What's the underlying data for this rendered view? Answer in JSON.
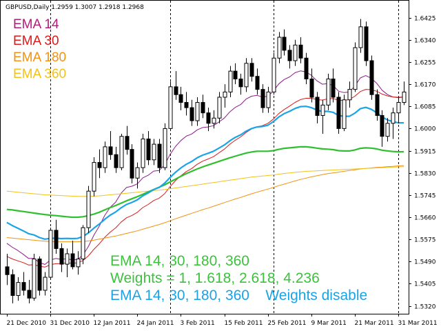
{
  "chart_data": {
    "type": "candlestick",
    "symbol_line": "GBPUSD,Daily 1.2959 1.3007 1.2918 1.2968",
    "ylim": [
      1.529,
      1.649
    ],
    "y_ticks": [
      "1.6425",
      "1.6340",
      "1.6255",
      "1.6170",
      "1.6085",
      "1.6000",
      "1.5915",
      "1.5830",
      "1.5745",
      "1.5660",
      "1.5575",
      "1.5490",
      "1.5405",
      "1.5320"
    ],
    "x_ticks": [
      {
        "label": "21 Dec 2010",
        "bar": 0
      },
      {
        "label": "31 Dec 2010",
        "bar": 8
      },
      {
        "label": "12 Jan 2011",
        "bar": 16
      },
      {
        "label": "24 Jan 2011",
        "bar": 24
      },
      {
        "label": "3 Feb 2011",
        "bar": 32
      },
      {
        "label": "15 Feb 2011",
        "bar": 40
      },
      {
        "label": "25 Feb 2011",
        "bar": 48
      },
      {
        "label": "9 Mar 2011",
        "bar": 56
      },
      {
        "label": "21 Mar 2011",
        "bar": 64
      },
      {
        "label": "31 Mar 2011",
        "bar": 72
      }
    ],
    "period_separators_at_bars": [
      8,
      30,
      49,
      72
    ],
    "candles": [
      [
        1.547,
        1.552,
        1.54,
        1.544
      ],
      [
        1.544,
        1.546,
        1.533,
        1.536
      ],
      [
        1.536,
        1.543,
        1.534,
        1.541
      ],
      [
        1.541,
        1.545,
        1.536,
        1.538
      ],
      [
        1.538,
        1.542,
        1.533,
        1.535
      ],
      [
        1.535,
        1.552,
        1.534,
        1.55
      ],
      [
        1.55,
        1.551,
        1.536,
        1.538
      ],
      [
        1.538,
        1.545,
        1.536,
        1.543
      ],
      [
        1.543,
        1.562,
        1.542,
        1.561
      ],
      [
        1.561,
        1.565,
        1.552,
        1.554
      ],
      [
        1.554,
        1.556,
        1.545,
        1.548
      ],
      [
        1.548,
        1.554,
        1.543,
        1.552
      ],
      [
        1.552,
        1.557,
        1.546,
        1.547
      ],
      [
        1.547,
        1.553,
        1.544,
        1.55
      ],
      [
        1.55,
        1.563,
        1.548,
        1.562
      ],
      [
        1.562,
        1.578,
        1.56,
        1.576
      ],
      [
        1.576,
        1.589,
        1.574,
        1.587
      ],
      [
        1.587,
        1.592,
        1.581,
        1.585
      ],
      [
        1.585,
        1.595,
        1.583,
        1.593
      ],
      [
        1.593,
        1.599,
        1.588,
        1.59
      ],
      [
        1.59,
        1.593,
        1.583,
        1.585
      ],
      [
        1.585,
        1.598,
        1.584,
        1.597
      ],
      [
        1.597,
        1.601,
        1.59,
        1.592
      ],
      [
        1.592,
        1.594,
        1.579,
        1.581
      ],
      [
        1.581,
        1.587,
        1.577,
        1.585
      ],
      [
        1.585,
        1.598,
        1.583,
        1.596
      ],
      [
        1.596,
        1.599,
        1.586,
        1.588
      ],
      [
        1.588,
        1.596,
        1.586,
        1.594
      ],
      [
        1.594,
        1.596,
        1.583,
        1.585
      ],
      [
        1.585,
        1.602,
        1.584,
        1.6
      ],
      [
        1.6,
        1.618,
        1.599,
        1.616
      ],
      [
        1.616,
        1.622,
        1.611,
        1.613
      ],
      [
        1.613,
        1.616,
        1.607,
        1.61
      ],
      [
        1.61,
        1.614,
        1.605,
        1.608
      ],
      [
        1.608,
        1.611,
        1.601,
        1.603
      ],
      [
        1.603,
        1.612,
        1.601,
        1.61
      ],
      [
        1.61,
        1.613,
        1.604,
        1.606
      ],
      [
        1.606,
        1.608,
        1.599,
        1.602
      ],
      [
        1.602,
        1.607,
        1.6,
        1.604
      ],
      [
        1.604,
        1.614,
        1.602,
        1.612
      ],
      [
        1.612,
        1.617,
        1.608,
        1.614
      ],
      [
        1.614,
        1.624,
        1.612,
        1.622
      ],
      [
        1.622,
        1.625,
        1.617,
        1.619
      ],
      [
        1.619,
        1.621,
        1.613,
        1.616
      ],
      [
        1.616,
        1.627,
        1.614,
        1.625
      ],
      [
        1.625,
        1.627,
        1.618,
        1.62
      ],
      [
        1.62,
        1.623,
        1.613,
        1.615
      ],
      [
        1.615,
        1.617,
        1.606,
        1.608
      ],
      [
        1.608,
        1.616,
        1.606,
        1.614
      ],
      [
        1.614,
        1.629,
        1.613,
        1.627
      ],
      [
        1.627,
        1.637,
        1.625,
        1.635
      ],
      [
        1.635,
        1.638,
        1.628,
        1.63
      ],
      [
        1.63,
        1.632,
        1.623,
        1.626
      ],
      [
        1.626,
        1.634,
        1.624,
        1.632
      ],
      [
        1.632,
        1.635,
        1.625,
        1.627
      ],
      [
        1.627,
        1.629,
        1.617,
        1.619
      ],
      [
        1.619,
        1.623,
        1.61,
        1.612
      ],
      [
        1.612,
        1.614,
        1.602,
        1.605
      ],
      [
        1.605,
        1.611,
        1.598,
        1.609
      ],
      [
        1.609,
        1.621,
        1.607,
        1.619
      ],
      [
        1.619,
        1.623,
        1.61,
        1.612
      ],
      [
        1.612,
        1.614,
        1.598,
        1.6
      ],
      [
        1.6,
        1.613,
        1.599,
        1.611
      ],
      [
        1.611,
        1.618,
        1.608,
        1.615
      ],
      [
        1.615,
        1.633,
        1.614,
        1.631
      ],
      [
        1.631,
        1.642,
        1.629,
        1.639
      ],
      [
        1.639,
        1.641,
        1.624,
        1.626
      ],
      [
        1.626,
        1.628,
        1.611,
        1.613
      ],
      [
        1.613,
        1.615,
        1.603,
        1.605
      ],
      [
        1.605,
        1.607,
        1.593,
        1.597
      ],
      [
        1.597,
        1.604,
        1.595,
        1.602
      ],
      [
        1.602,
        1.608,
        1.596,
        1.606
      ],
      [
        1.606,
        1.612,
        1.602,
        1.61
      ],
      [
        1.61,
        1.618,
        1.609,
        1.614
      ]
    ],
    "series": [
      {
        "name": "EMA 14",
        "color": "#8B1A8B",
        "width": 1,
        "values": [
          1.556,
          1.5545,
          1.5533,
          1.5518,
          1.5502,
          1.5502,
          1.5486,
          1.5479,
          1.5496,
          1.5502,
          1.5498,
          1.5501,
          1.5497,
          1.5498,
          1.5515,
          1.5548,
          1.5591,
          1.5626,
          1.5667,
          1.5698,
          1.5718,
          1.5752,
          1.5774,
          1.5779,
          1.5788,
          1.5811,
          1.5821,
          1.5837,
          1.5839,
          1.586,
          1.59,
          1.5931,
          1.5954,
          1.5971,
          1.5979,
          1.5995,
          1.6004,
          1.6006,
          1.6011,
          1.6025,
          1.604,
          1.6064,
          1.6081,
          1.6092,
          1.6113,
          1.6124,
          1.6127,
          1.6121,
          1.6124,
          1.6143,
          1.6171,
          1.6188,
          1.6198,
          1.6214,
          1.6221,
          1.6217,
          1.6204,
          1.6183,
          1.617,
          1.6172,
          1.6165,
          1.6143,
          1.6138,
          1.614,
          1.6163,
          1.6194,
          1.6203,
          1.6193,
          1.6174,
          1.6147,
          1.613,
          1.6121,
          1.6118,
          1.6121
        ]
      },
      {
        "name": "EMA 30",
        "color": "#D81A1A",
        "width": 1,
        "values": [
          1.551,
          1.55,
          1.5493,
          1.5486,
          1.5477,
          1.5478,
          1.5472,
          1.5469,
          1.5478,
          1.5482,
          1.5482,
          1.5485,
          1.5484,
          1.5485,
          1.5494,
          1.5512,
          1.5537,
          1.5558,
          1.5583,
          1.5603,
          1.5619,
          1.5641,
          1.5658,
          1.5667,
          1.5679,
          1.5697,
          1.5709,
          1.5724,
          1.5733,
          1.575,
          1.5777,
          1.58,
          1.5819,
          1.5835,
          1.5847,
          1.5863,
          1.5875,
          1.5883,
          1.5892,
          1.5907,
          1.5921,
          1.594,
          1.5955,
          1.5968,
          1.5985,
          1.5998,
          1.6007,
          1.6011,
          1.602,
          1.6036,
          1.6057,
          1.6073,
          1.6086,
          1.61,
          1.6111,
          1.6116,
          1.6116,
          1.6111,
          1.6109,
          1.6114,
          1.6115,
          1.6108,
          1.6108,
          1.6111,
          1.6124,
          1.6142,
          1.615,
          1.6149,
          1.6143,
          1.6132,
          1.6125,
          1.6121,
          1.612,
          1.6121
        ]
      },
      {
        "name": "EMA 180",
        "color": "#F2920F",
        "width": 1,
        "values": [
          1.5582,
          1.558,
          1.5578,
          1.5576,
          1.5574,
          1.5572,
          1.557,
          1.5568,
          1.5567,
          1.5566,
          1.5566,
          1.5566,
          1.5566,
          1.5566,
          1.5567,
          1.5569,
          1.5572,
          1.5576,
          1.558,
          1.5584,
          1.5588,
          1.5593,
          1.5598,
          1.5603,
          1.5608,
          1.5614,
          1.562,
          1.5626,
          1.5632,
          1.5639,
          1.5646,
          1.5654,
          1.5661,
          1.5668,
          1.5675,
          1.5682,
          1.5689,
          1.5695,
          1.5702,
          1.5709,
          1.5716,
          1.5723,
          1.573,
          1.5736,
          1.5743,
          1.575,
          1.5756,
          1.5762,
          1.5768,
          1.5774,
          1.5781,
          1.5787,
          1.5793,
          1.5799,
          1.5805,
          1.581,
          1.5815,
          1.5819,
          1.5823,
          1.5827,
          1.583,
          1.5833,
          1.5836,
          1.5839,
          1.5842,
          1.5845,
          1.5847,
          1.5849,
          1.5851,
          1.5852,
          1.5854,
          1.5855,
          1.5857,
          1.5858
        ]
      },
      {
        "name": "EMA 360",
        "color": "#F2C218",
        "width": 1,
        "values": [
          1.576,
          1.5758,
          1.5756,
          1.5754,
          1.5752,
          1.575,
          1.5748,
          1.5746,
          1.5745,
          1.5744,
          1.5743,
          1.5742,
          1.5741,
          1.574,
          1.574,
          1.574,
          1.5741,
          1.5742,
          1.5744,
          1.5746,
          1.5748,
          1.575,
          1.5752,
          1.5754,
          1.5756,
          1.5758,
          1.576,
          1.5762,
          1.5764,
          1.5766,
          1.5769,
          1.5772,
          1.5775,
          1.5778,
          1.5781,
          1.5784,
          1.5787,
          1.579,
          1.5793,
          1.5796,
          1.5799,
          1.5802,
          1.5805,
          1.5808,
          1.5811,
          1.5814,
          1.5816,
          1.5818,
          1.582,
          1.5822,
          1.5825,
          1.5828,
          1.583,
          1.5832,
          1.5834,
          1.5836,
          1.5837,
          1.5838,
          1.5839,
          1.584,
          1.5841,
          1.5842,
          1.5843,
          1.5844,
          1.5845,
          1.5846,
          1.5847,
          1.5848,
          1.5849,
          1.585,
          1.5851,
          1.5852,
          1.5853,
          1.5854
        ]
      },
      {
        "name": "",
        "color": "#2EBF2E",
        "width": 2.2,
        "values": [
          1.569,
          1.5688,
          1.5685,
          1.5682,
          1.5679,
          1.5676,
          1.5673,
          1.567,
          1.5668,
          1.5666,
          1.5664,
          1.5662,
          1.566,
          1.566,
          1.5662,
          1.5666,
          1.5672,
          1.5679,
          1.5688,
          1.5697,
          1.5705,
          1.5714,
          1.5723,
          1.5731,
          1.5739,
          1.5748,
          1.5757,
          1.5766,
          1.5775,
          1.5784,
          1.5795,
          1.5806,
          1.5817,
          1.5827,
          1.5836,
          1.5845,
          1.5853,
          1.586,
          1.5867,
          1.5874,
          1.5881,
          1.5888,
          1.5894,
          1.59,
          1.5906,
          1.591,
          1.5913,
          1.5913,
          1.5913,
          1.5915,
          1.592,
          1.5924,
          1.5926,
          1.5928,
          1.593,
          1.593,
          1.5928,
          1.5925,
          1.5922,
          1.5921,
          1.5919,
          1.5915,
          1.5914,
          1.5914,
          1.5918,
          1.5924,
          1.5926,
          1.5925,
          1.5922,
          1.5917,
          1.5914,
          1.5912,
          1.5911,
          1.5911
        ]
      },
      {
        "name": "",
        "color": "#1AA3E6",
        "width": 2.2,
        "values": [
          1.564,
          1.5628,
          1.5618,
          1.5608,
          1.5597,
          1.5592,
          1.5582,
          1.5576,
          1.5579,
          1.558,
          1.5578,
          1.5579,
          1.5578,
          1.5579,
          1.5586,
          1.56,
          1.5618,
          1.5634,
          1.5652,
          1.5668,
          1.568,
          1.5696,
          1.5709,
          1.5717,
          1.5727,
          1.5742,
          1.5753,
          1.5766,
          1.5774,
          1.579,
          1.5812,
          1.5832,
          1.5849,
          1.5863,
          1.5874,
          1.5888,
          1.5898,
          1.5905,
          1.5913,
          1.5925,
          1.5937,
          1.5953,
          1.5966,
          1.5976,
          1.599,
          1.6,
          1.6006,
          1.6008,
          1.6013,
          1.6026,
          1.6044,
          1.6057,
          1.6066,
          1.6077,
          1.6084,
          1.6085,
          1.608,
          1.6071,
          1.6065,
          1.6066,
          1.6062,
          1.605,
          1.6047,
          1.6047,
          1.6059,
          1.6076,
          1.6081,
          1.6074,
          1.6061,
          1.6044,
          1.6033,
          1.6026,
          1.6022,
          1.6022
        ]
      }
    ]
  },
  "legend": [
    {
      "label": "EMA 14",
      "color": "#B5197A"
    },
    {
      "label": "EMA 30",
      "color": "#E01818"
    },
    {
      "label": "EMA 180",
      "color": "#F2920F"
    },
    {
      "label": "EMA 360",
      "color": "#F2C218"
    }
  ],
  "notes": [
    {
      "text": "EMA 14, 30, 180, 360",
      "color": "#3CC23C"
    },
    {
      "text": "Weights = 1, 1.618, 2.618, 4.236",
      "color": "#3CC23C"
    },
    {
      "text": "EMA 14, 30, 180, 360    Weights disable",
      "color": "#1AA3E6"
    }
  ]
}
